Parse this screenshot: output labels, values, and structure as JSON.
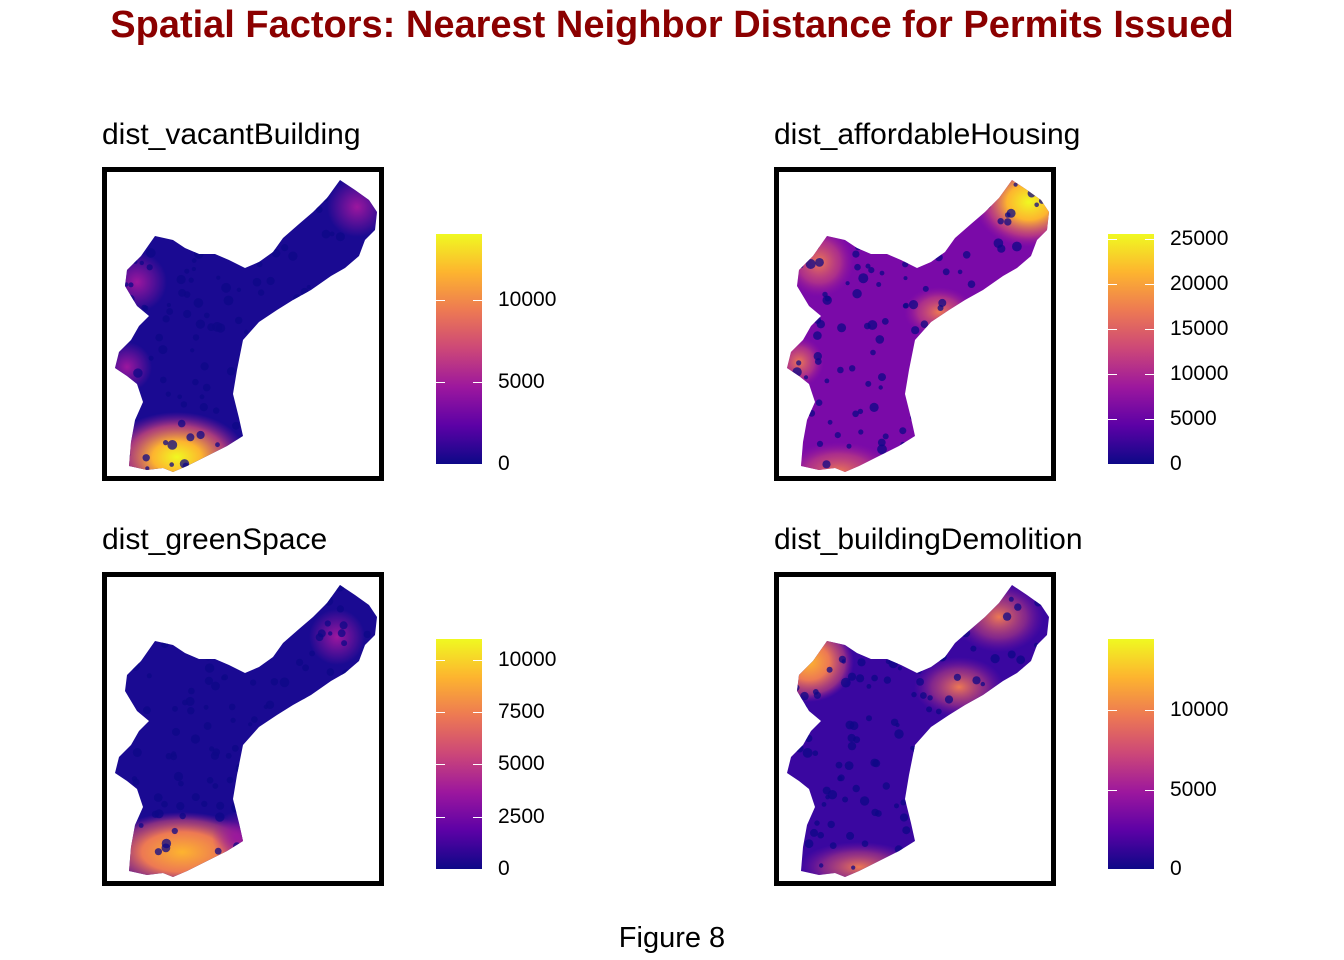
{
  "title": "Spatial Factors: Nearest Neighbor Distance for Permits Issued",
  "title_color": "#8b0000",
  "caption": "Figure 8",
  "colormap": "plasma",
  "colormap_stops": [
    "#0d0887",
    "#5c01a6",
    "#9c179e",
    "#cc4778",
    "#ed7953",
    "#fdb42f",
    "#f0f921"
  ],
  "panels": [
    {
      "id": "p1",
      "title": "dist_vacantBuilding",
      "legend": {
        "min": 0,
        "max": 14000,
        "ticks": [
          {
            "value": 0,
            "label": "0"
          },
          {
            "value": 5000,
            "label": "5000"
          },
          {
            "value": 10000,
            "label": "10000"
          }
        ]
      },
      "hot_regions": [
        "south tip",
        "north-east edge"
      ]
    },
    {
      "id": "p2",
      "title": "dist_affordableHousing",
      "legend": {
        "min": 0,
        "max": 25500,
        "ticks": [
          {
            "value": 0,
            "label": "0"
          },
          {
            "value": 5000,
            "label": "5000"
          },
          {
            "value": 10000,
            "label": "10000"
          },
          {
            "value": 15000,
            "label": "15000"
          },
          {
            "value": 20000,
            "label": "20000"
          },
          {
            "value": 25000,
            "label": "25000"
          }
        ]
      },
      "hot_regions": [
        "north-east corner",
        "west edge",
        "south edge"
      ]
    },
    {
      "id": "p3",
      "title": "dist_greenSpace",
      "legend": {
        "min": 0,
        "max": 11000,
        "ticks": [
          {
            "value": 0,
            "label": "0"
          },
          {
            "value": 2500,
            "label": "2500"
          },
          {
            "value": 5000,
            "label": "5000"
          },
          {
            "value": 7500,
            "label": "7500"
          },
          {
            "value": 10000,
            "label": "10000"
          }
        ]
      },
      "hot_regions": [
        "south tip"
      ]
    },
    {
      "id": "p4",
      "title": "dist_buildingDemolition",
      "legend": {
        "min": 0,
        "max": 14500,
        "ticks": [
          {
            "value": 0,
            "label": "0"
          },
          {
            "value": 5000,
            "label": "5000"
          },
          {
            "value": 10000,
            "label": "10000"
          }
        ]
      },
      "hot_regions": [
        "north-west corner",
        "north-east arm",
        "south edge"
      ]
    }
  ]
}
